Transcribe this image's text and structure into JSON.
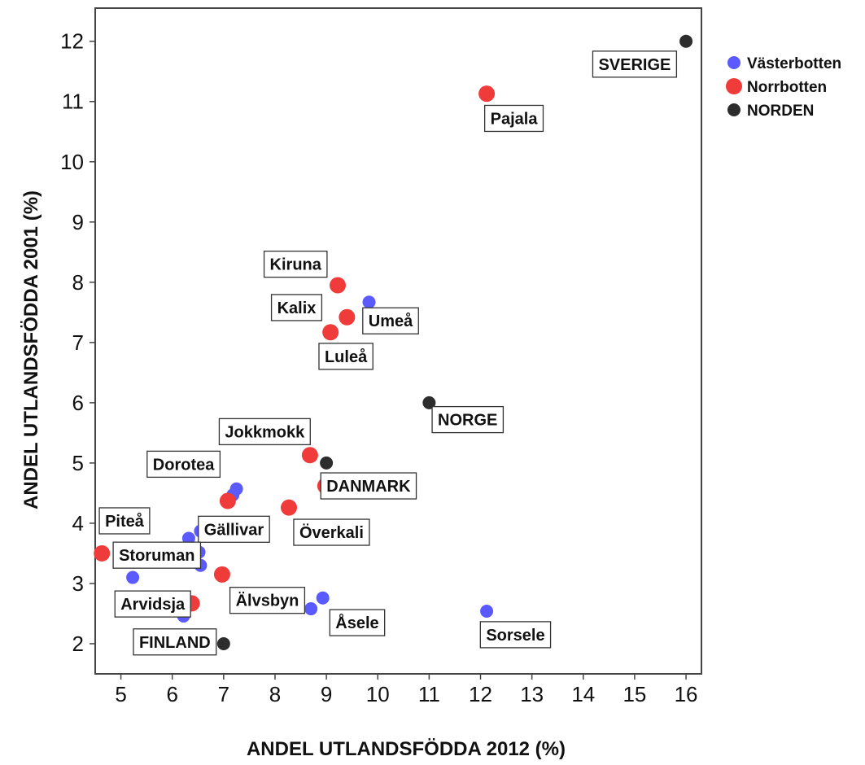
{
  "chart_data": {
    "type": "scatter",
    "title": "",
    "xlabel": "ANDEL UTLANDSFÖDDA 2012 (%)",
    "ylabel": "ANDEL UTLANDSFÖDDA 2001 (%)",
    "xlim": [
      4.5,
      16.3
    ],
    "ylim": [
      1.5,
      12.55
    ],
    "xticks": [
      5,
      6,
      7,
      8,
      9,
      10,
      11,
      12,
      13,
      14,
      15,
      16
    ],
    "yticks": [
      2,
      3,
      4,
      5,
      6,
      7,
      8,
      9,
      10,
      11,
      12
    ],
    "grid": false,
    "legend_position": "top-right",
    "series": [
      {
        "name": "Västerbotten",
        "color": "#5a5aff",
        "points": [
          {
            "x": 9.83,
            "y": 7.67,
            "label": "Umeå"
          },
          {
            "x": 7.25,
            "y": 4.57,
            "label": "Dorotea"
          },
          {
            "x": 7.18,
            "y": 4.47
          },
          {
            "x": 6.55,
            "y": 3.87,
            "label": "Gällivar"
          },
          {
            "x": 6.32,
            "y": 3.75
          },
          {
            "x": 6.52,
            "y": 3.52
          },
          {
            "x": 6.55,
            "y": 3.3
          },
          {
            "x": 5.23,
            "y": 3.1
          },
          {
            "x": 6.22,
            "y": 2.46
          },
          {
            "x": 8.93,
            "y": 2.76,
            "label": "Åsele"
          },
          {
            "x": 8.7,
            "y": 2.58
          },
          {
            "x": 12.12,
            "y": 2.54,
            "label": "Sorsele"
          }
        ]
      },
      {
        "name": "Norrbotten",
        "color": "#f03b3b",
        "points": [
          {
            "x": 12.12,
            "y": 11.13,
            "label": "Pajala"
          },
          {
            "x": 9.22,
            "y": 7.95,
            "label": "Kiruna"
          },
          {
            "x": 9.4,
            "y": 7.42,
            "label": "Kalix"
          },
          {
            "x": 9.08,
            "y": 7.17,
            "label": "Luleå"
          },
          {
            "x": 8.68,
            "y": 5.13,
            "label": "Jokkmokk"
          },
          {
            "x": 8.98,
            "y": 4.62
          },
          {
            "x": 7.08,
            "y": 4.37
          },
          {
            "x": 8.27,
            "y": 4.26,
            "label": "Överkali"
          },
          {
            "x": 4.63,
            "y": 3.5,
            "label": "Piteå"
          },
          {
            "x": 6.97,
            "y": 3.15,
            "label": "Älvsbyn"
          },
          {
            "x": 6.38,
            "y": 2.67,
            "label": "Arvidsja"
          }
        ]
      },
      {
        "name": "NORDEN",
        "color": "#2d2d2d",
        "points": [
          {
            "x": 16.0,
            "y": 12.0,
            "label": "SVERIGE"
          },
          {
            "x": 11.0,
            "y": 6.0,
            "label": "NORGE"
          },
          {
            "x": 9.0,
            "y": 5.0,
            "label": "DANMARK"
          },
          {
            "x": 7.0,
            "y": 2.0,
            "label": "FINLAND"
          }
        ]
      }
    ],
    "labels": [
      {
        "text": "SVERIGE",
        "x": 15.0,
        "y": 11.62
      },
      {
        "text": "Pajala",
        "x": 12.65,
        "y": 10.72
      },
      {
        "text": "Kiruna",
        "x": 8.4,
        "y": 8.3
      },
      {
        "text": "Kalix",
        "x": 8.42,
        "y": 7.58
      },
      {
        "text": "Umeå",
        "x": 10.25,
        "y": 7.36
      },
      {
        "text": "Luleå",
        "x": 9.38,
        "y": 6.77
      },
      {
        "text": "NORGE",
        "x": 11.75,
        "y": 5.72
      },
      {
        "text": "Jokkmokk",
        "x": 7.8,
        "y": 5.52
      },
      {
        "text": "Dorotea",
        "x": 6.22,
        "y": 4.98
      },
      {
        "text": "DANMARK",
        "x": 9.82,
        "y": 4.62
      },
      {
        "text": "Piteå",
        "x": 5.07,
        "y": 4.04
      },
      {
        "text": "Gällivar",
        "x": 7.2,
        "y": 3.9
      },
      {
        "text": "Överkali",
        "x": 9.1,
        "y": 3.85
      },
      {
        "text": "Storuman",
        "x": 5.7,
        "y": 3.47
      },
      {
        "text": "Älvsbyn",
        "x": 7.85,
        "y": 2.72
      },
      {
        "text": "Arvidsja",
        "x": 5.62,
        "y": 2.66
      },
      {
        "text": "Åsele",
        "x": 9.6,
        "y": 2.35
      },
      {
        "text": "Sorsele",
        "x": 12.68,
        "y": 2.15
      },
      {
        "text": "FINLAND",
        "x": 6.05,
        "y": 2.03
      }
    ]
  }
}
